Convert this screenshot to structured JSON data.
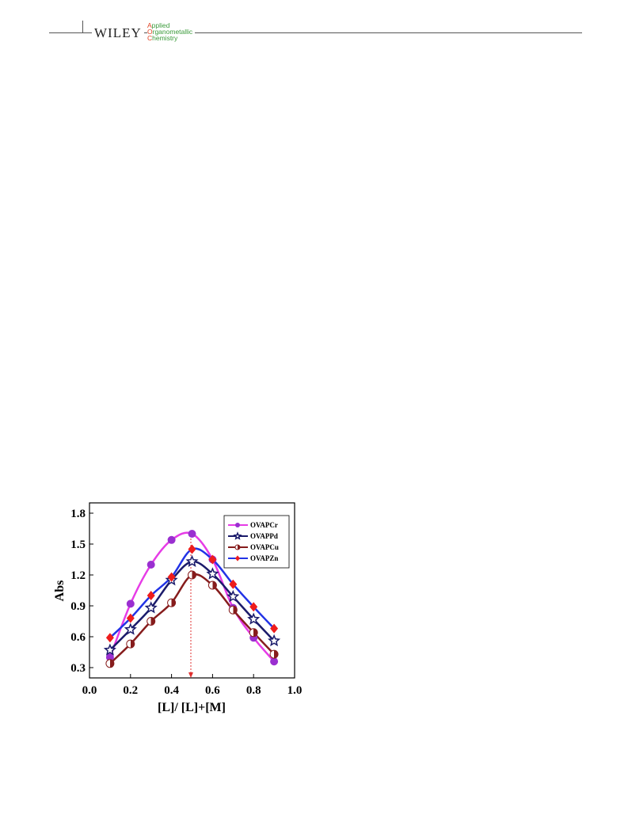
{
  "header": {
    "publisher": "WILEY",
    "journal": [
      "Applied",
      "Organometallic",
      "Chemistry"
    ]
  },
  "chart_data": {
    "type": "line",
    "xlabel": "[L]/ [L]+[M]",
    "ylabel": "Abs",
    "x": [
      0.1,
      0.2,
      0.3,
      0.4,
      0.5,
      0.6,
      0.7,
      0.8,
      0.9
    ],
    "series": [
      {
        "name": "OVAPCr",
        "color": "#e63ce6",
        "marker_color": "#9a2fd0",
        "marker": "circle",
        "values": [
          0.4,
          0.92,
          1.3,
          1.54,
          1.6,
          1.35,
          0.88,
          0.59,
          0.36
        ]
      },
      {
        "name": "OVAPPd",
        "color": "#1b1b6b",
        "marker_color": "#1b1b6b",
        "marker": "star",
        "values": [
          0.47,
          0.67,
          0.88,
          1.15,
          1.33,
          1.21,
          0.99,
          0.77,
          0.56
        ]
      },
      {
        "name": "OVAPCu",
        "color": "#861c1c",
        "marker_color": "#861c1c",
        "marker": "half",
        "values": [
          0.34,
          0.53,
          0.75,
          0.93,
          1.2,
          1.1,
          0.86,
          0.64,
          0.43
        ]
      },
      {
        "name": "OVAPZn",
        "color": "#2233e6",
        "marker_color": "#ee1c1c",
        "marker": "diamond",
        "values": [
          0.59,
          0.78,
          1.0,
          1.18,
          1.45,
          1.35,
          1.11,
          0.89,
          0.68
        ]
      }
    ],
    "xlim": [
      0,
      1
    ],
    "ylim": [
      0.2,
      1.9
    ],
    "xticks": [
      {
        "value": 0,
        "label": "0.0"
      },
      0.2,
      0.4,
      0.6,
      0.8,
      {
        "value": 1,
        "label": "1.0"
      }
    ],
    "yticks": [
      0.3,
      0.6,
      0.9,
      1.2,
      1.5,
      1.8
    ],
    "legend": "upper right"
  }
}
